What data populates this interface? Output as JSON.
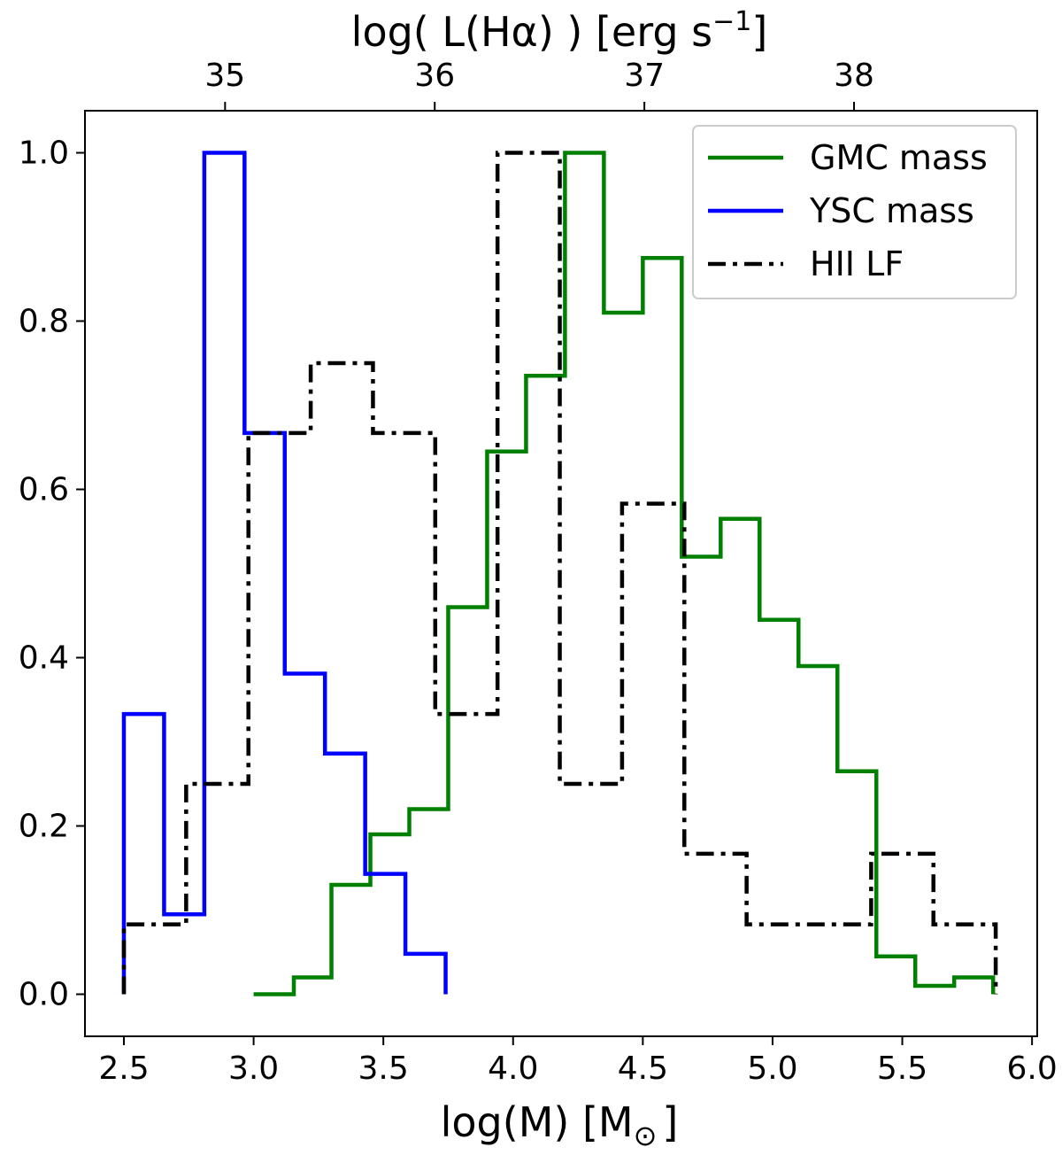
{
  "chart_data": {
    "type": "step",
    "title": "",
    "xlabel": "log(M) [M",
    "xlabel_symbol": "⊙",
    "xlabel_close": "]",
    "top_xlabel": "log( L(Hα) ) [erg s",
    "top_xlabel_exp": "−1",
    "top_xlabel_close": "]",
    "xlim": [
      2.35,
      6.02
    ],
    "ylim": [
      -0.05,
      1.05
    ],
    "top_axis_map": {
      "x_at_35": 2.89,
      "x_per_unit": 0.808
    },
    "xticks": [
      2.5,
      3.0,
      3.5,
      4.0,
      4.5,
      5.0,
      5.5,
      6.0
    ],
    "xtick_labels": [
      "2.5",
      "3.0",
      "3.5",
      "4.0",
      "4.5",
      "5.0",
      "5.5",
      "6.0"
    ],
    "yticks": [
      0.0,
      0.2,
      0.4,
      0.6,
      0.8,
      1.0
    ],
    "ytick_labels": [
      "0.0",
      "0.2",
      "0.4",
      "0.6",
      "0.8",
      "1.0"
    ],
    "top_ticks": [
      35,
      36,
      37,
      38
    ],
    "top_tick_labels": [
      "35",
      "36",
      "37",
      "38"
    ],
    "legend_position": "top-right",
    "series": [
      {
        "name": "GMC mass",
        "color": "#008000",
        "style": "solid",
        "edges": [
          3.0,
          3.155,
          3.3,
          3.45,
          3.6,
          3.75,
          3.9,
          4.05,
          4.2,
          4.35,
          4.5,
          4.65,
          4.8,
          4.95,
          5.1,
          5.25,
          5.4,
          5.55,
          5.7,
          5.85
        ],
        "values": [
          0.0,
          0.02,
          0.13,
          0.19,
          0.22,
          0.46,
          0.645,
          0.735,
          1.0,
          0.81,
          0.875,
          0.52,
          0.565,
          0.445,
          0.39,
          0.265,
          0.045,
          0.01,
          0.02
        ]
      },
      {
        "name": "YSC mass",
        "color": "#0000ff",
        "style": "solid",
        "edges": [
          2.5,
          2.655,
          2.81,
          2.965,
          3.12,
          3.275,
          3.43,
          3.585,
          3.74
        ],
        "values": [
          0.333,
          0.095,
          1.0,
          0.667,
          0.381,
          0.286,
          0.143,
          0.048
        ]
      },
      {
        "name": "HII LF",
        "color": "#000000",
        "style": "dashdot",
        "edges": [
          2.5,
          2.74,
          2.98,
          3.22,
          3.46,
          3.7,
          3.94,
          4.18,
          4.42,
          4.66,
          4.9,
          5.14,
          5.38,
          5.62,
          5.86
        ],
        "values": [
          0.083,
          0.25,
          0.667,
          0.75,
          0.667,
          0.333,
          1.0,
          0.25,
          0.583,
          0.167,
          0.083,
          0.083,
          0.167,
          0.083
        ]
      }
    ]
  }
}
